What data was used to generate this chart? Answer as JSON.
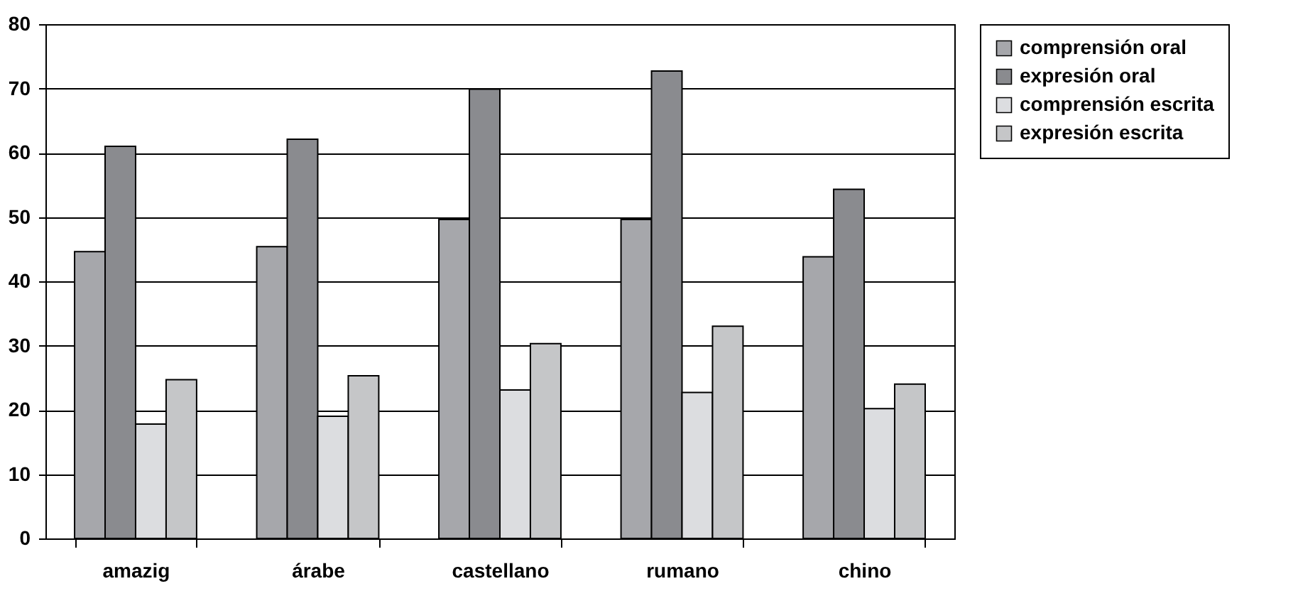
{
  "chart_data": {
    "type": "bar",
    "categories": [
      "amazig",
      "árabe",
      "castellano",
      "rumano",
      "chino"
    ],
    "series": [
      {
        "name": "comprensión oral",
        "color": "#a6a7ab",
        "values": [
          44.6,
          45.4,
          49.6,
          49.6,
          43.8
        ]
      },
      {
        "name": "expresión oral",
        "color": "#8a8b8f",
        "values": [
          61.0,
          62.1,
          69.9,
          72.7,
          54.3
        ]
      },
      {
        "name": "comprensión escrita",
        "color": "#dcdde0",
        "values": [
          17.8,
          19.0,
          23.1,
          22.7,
          20.2
        ]
      },
      {
        "name": "expresión escrita",
        "color": "#c5c6c8",
        "values": [
          24.7,
          25.3,
          30.3,
          33.0,
          24.0
        ]
      }
    ],
    "ylim": [
      0,
      80
    ],
    "yticks": [
      0,
      10,
      20,
      30,
      40,
      50,
      60,
      70,
      80
    ],
    "grid": "y",
    "legend": "right"
  }
}
